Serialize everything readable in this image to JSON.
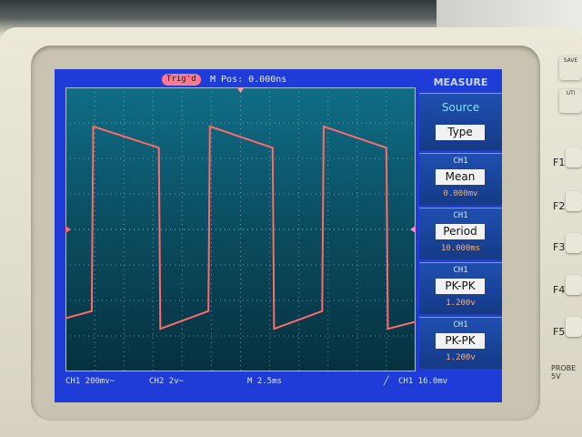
{
  "header": {
    "trigger_badge": "Trig'd",
    "m_pos": "M Pos: 0.000ns",
    "menu_title": "MEASURE"
  },
  "menu": {
    "source_label": "Source",
    "type_button": "Type",
    "items": [
      {
        "channel": "CH1",
        "label": "Mean",
        "value": "0.000mv"
      },
      {
        "channel": "CH1",
        "label": "Period",
        "value": "10.000ms"
      },
      {
        "channel": "CH1",
        "label": "PK-PK",
        "value": "1.200v"
      },
      {
        "channel": "CH1",
        "label": "PK-PK",
        "value": "1.200v"
      }
    ]
  },
  "status": {
    "ch1_scale": "CH1 200mv~",
    "ch2_scale": "CH2 2v~",
    "time_base": "M 2.5ms",
    "trigger": "CH1 16.0mv"
  },
  "front_panel": {
    "fkeys": [
      "F1",
      "F2",
      "F3",
      "F4",
      "F5"
    ],
    "probe_label": "PROBE",
    "probe_sub": "5V",
    "top_buttons": [
      "SAVE",
      "UTI"
    ]
  },
  "colors": {
    "screen": "#1f3bd8",
    "trace": "#ff6a6a",
    "badge": "#ff7a90",
    "measure_value": "#ffb070"
  },
  "chart_data": {
    "type": "line",
    "title": "",
    "xlabel": "",
    "ylabel": "",
    "x_divisions": 12,
    "y_divisions": 8,
    "series": [
      {
        "values_description_free": true,
        "x": [
          0,
          0.9,
          0.95,
          3.2,
          3.25,
          4.9,
          4.95,
          7.1,
          7.15,
          8.8,
          8.85,
          11.0,
          11.05,
          12
        ],
        "y": [
          -2.5,
          -2.3,
          2.9,
          2.3,
          -2.8,
          -2.3,
          2.9,
          2.3,
          -2.8,
          -2.3,
          2.9,
          2.3,
          -2.8,
          -2.6
        ]
      }
    ],
    "ylim": [
      -4,
      4
    ],
    "xlim": [
      0,
      12
    ],
    "grid": true
  }
}
